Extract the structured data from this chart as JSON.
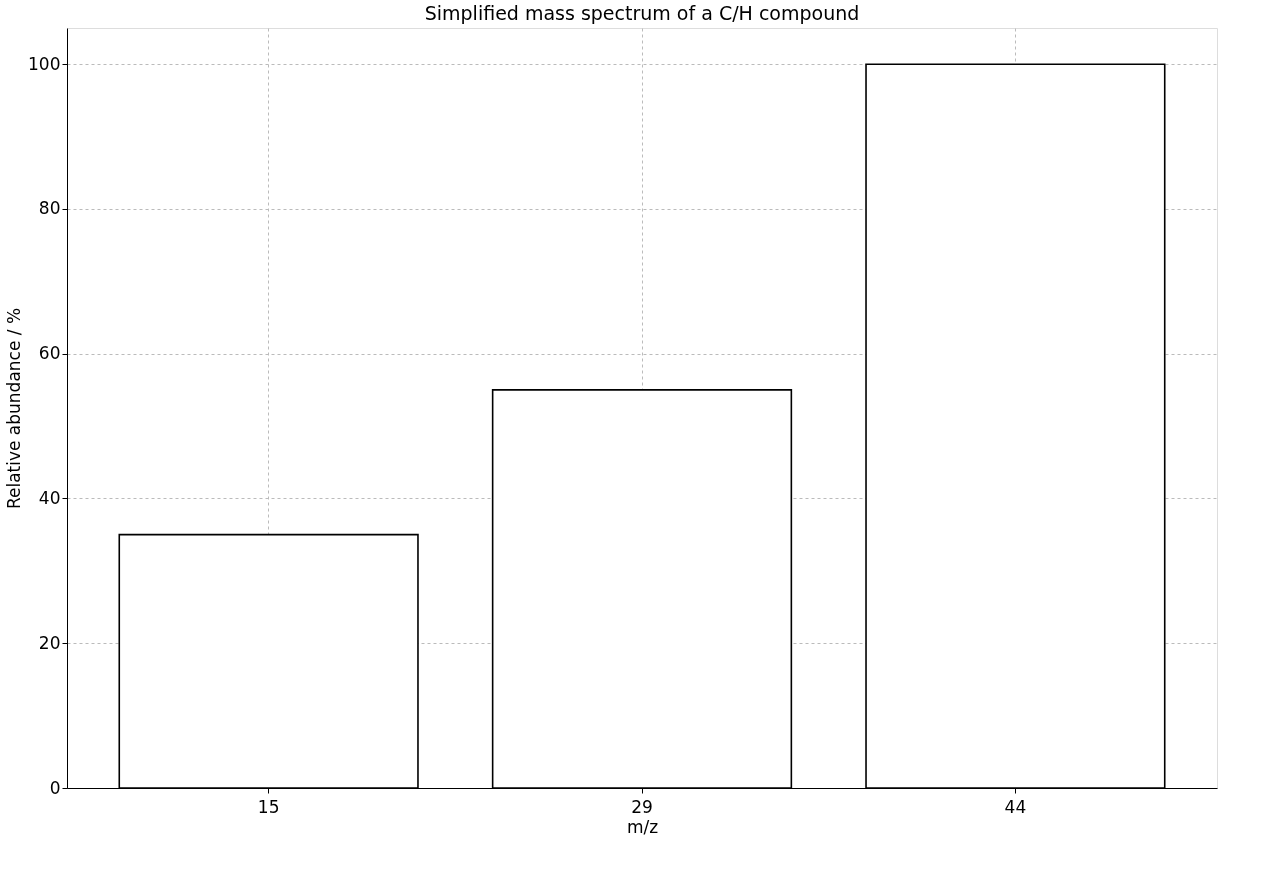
{
  "chart_data": {
    "type": "bar",
    "title": "Simplified mass spectrum of a C/H compound",
    "xlabel": "m/z",
    "ylabel": "Relative abundance / %",
    "categories": [
      "15",
      "29",
      "44"
    ],
    "values": [
      35,
      55,
      100
    ],
    "color": "#ffffff",
    "ylim": [
      0,
      105
    ],
    "yticks": [
      0,
      20,
      40,
      60,
      80,
      100
    ],
    "grid": true
  }
}
